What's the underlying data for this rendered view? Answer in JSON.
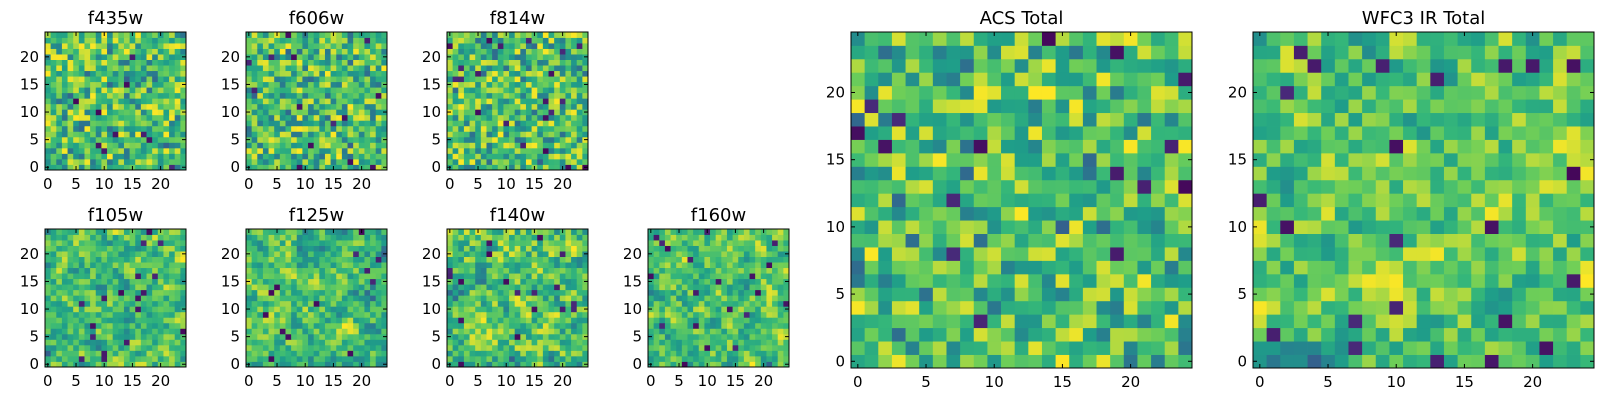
{
  "chart_data": [
    {
      "type": "heatmap",
      "title": "f435w",
      "xlim": [
        -0.5,
        24.5
      ],
      "ylim": [
        -0.5,
        24.5
      ],
      "x_ticks": [
        0,
        5,
        10,
        15,
        20
      ],
      "y_ticks": [
        0,
        5,
        10,
        15,
        20
      ],
      "grid": false,
      "colormap": "viridis"
    },
    {
      "type": "heatmap",
      "title": "f606w",
      "xlim": [
        -0.5,
        24.5
      ],
      "ylim": [
        -0.5,
        24.5
      ],
      "x_ticks": [
        0,
        5,
        10,
        15,
        20
      ],
      "y_ticks": [
        0,
        5,
        10,
        15,
        20
      ],
      "grid": false,
      "colormap": "viridis"
    },
    {
      "type": "heatmap",
      "title": "f814w",
      "xlim": [
        -0.5,
        24.5
      ],
      "ylim": [
        -0.5,
        24.5
      ],
      "x_ticks": [
        0,
        5,
        10,
        15,
        20
      ],
      "y_ticks": [
        0,
        5,
        10,
        15,
        20
      ],
      "grid": false,
      "colormap": "viridis"
    },
    {
      "type": "heatmap",
      "title": "f105w",
      "xlim": [
        -0.5,
        24.5
      ],
      "ylim": [
        -0.5,
        24.5
      ],
      "x_ticks": [
        0,
        5,
        10,
        15,
        20
      ],
      "y_ticks": [
        0,
        5,
        10,
        15,
        20
      ],
      "grid": false,
      "colormap": "viridis"
    },
    {
      "type": "heatmap",
      "title": "f125w",
      "xlim": [
        -0.5,
        24.5
      ],
      "ylim": [
        -0.5,
        24.5
      ],
      "x_ticks": [
        0,
        5,
        10,
        15,
        20
      ],
      "y_ticks": [
        0,
        5,
        10,
        15,
        20
      ],
      "grid": false,
      "colormap": "viridis"
    },
    {
      "type": "heatmap",
      "title": "f140w",
      "xlim": [
        -0.5,
        24.5
      ],
      "ylim": [
        -0.5,
        24.5
      ],
      "x_ticks": [
        0,
        5,
        10,
        15,
        20
      ],
      "y_ticks": [
        0,
        5,
        10,
        15,
        20
      ],
      "grid": false,
      "colormap": "viridis"
    },
    {
      "type": "heatmap",
      "title": "f160w",
      "xlim": [
        -0.5,
        24.5
      ],
      "ylim": [
        -0.5,
        24.5
      ],
      "x_ticks": [
        0,
        5,
        10,
        15,
        20
      ],
      "y_ticks": [
        0,
        5,
        10,
        15,
        20
      ],
      "grid": false,
      "colormap": "viridis"
    },
    {
      "type": "heatmap",
      "title": "ACS Total",
      "xlim": [
        -0.5,
        24.5
      ],
      "ylim": [
        -0.5,
        24.5
      ],
      "x_ticks": [
        0,
        5,
        10,
        15,
        20
      ],
      "y_ticks": [
        0,
        5,
        10,
        15,
        20
      ],
      "grid": false,
      "colormap": "viridis"
    },
    {
      "type": "heatmap",
      "title": "WFC3 IR Total",
      "xlim": [
        -0.5,
        24.5
      ],
      "ylim": [
        -0.5,
        24.5
      ],
      "x_ticks": [
        0,
        5,
        10,
        15,
        20
      ],
      "y_ticks": [
        0,
        5,
        10,
        15,
        20
      ],
      "grid": false,
      "colormap": "viridis"
    }
  ],
  "colors": {
    "background": "#ffffff",
    "axes": "#000000",
    "viridis_dark": "#440154",
    "viridis_mid": "#21918c",
    "viridis_bright": "#fde725"
  }
}
